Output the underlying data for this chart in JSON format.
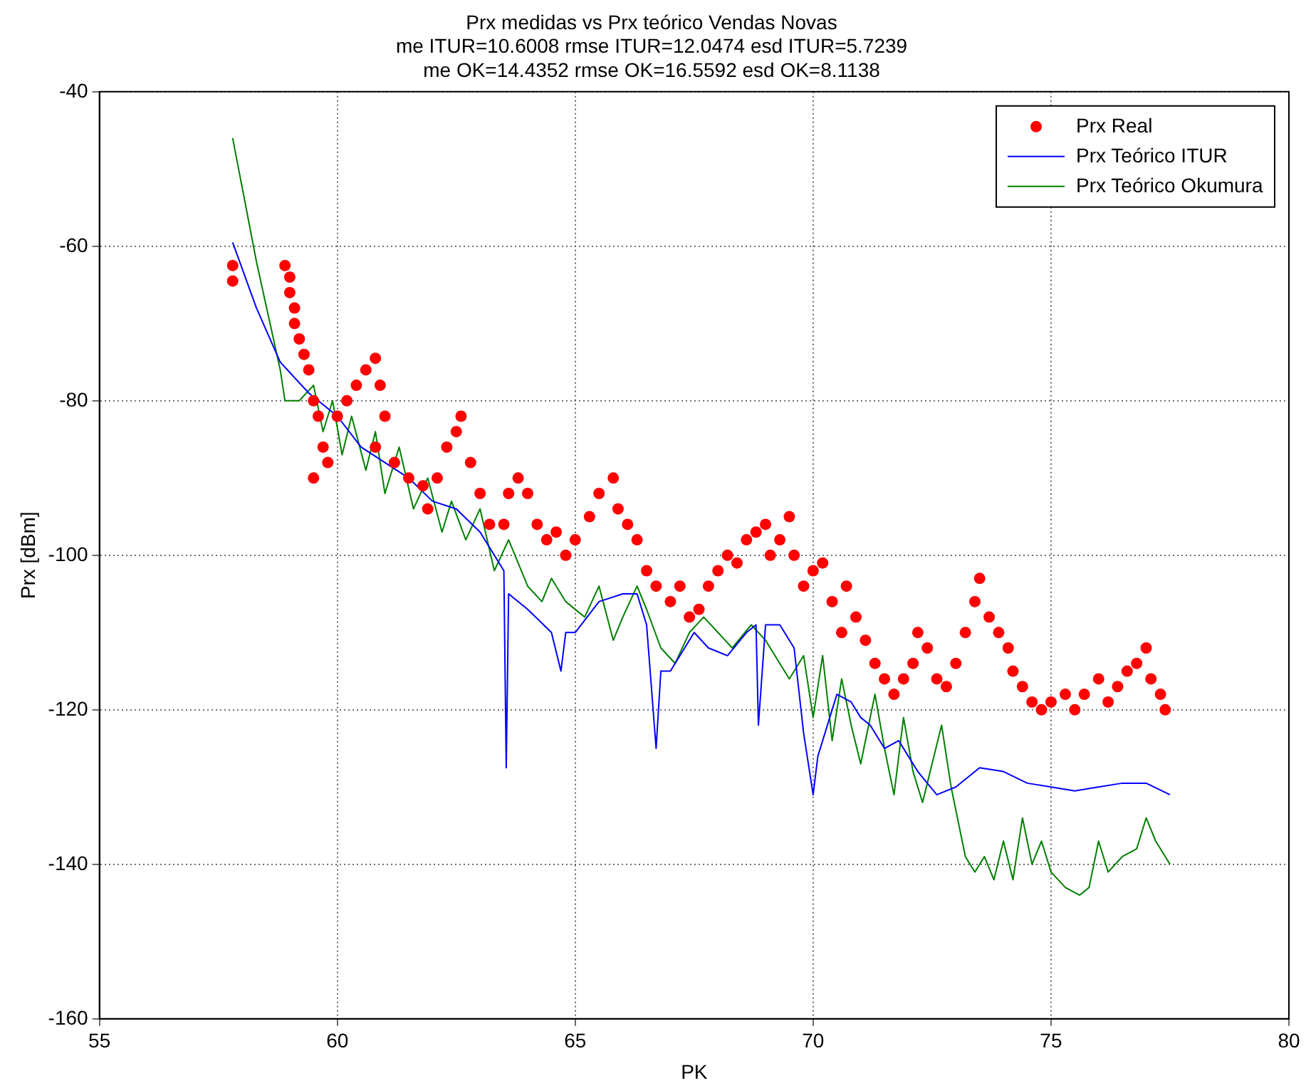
{
  "chart_data": {
    "type": "scatter",
    "title": "Prx medidas vs Prx teórico Vendas Novas",
    "subtitle": "me ITUR=10.6008 rmse ITUR=12.0474 esd ITUR=5.7239\nme OK=14.4352 rmse OK=16.5592 esd OK=8.1138",
    "xlabel": "PK",
    "ylabel": "Prx [dBm]",
    "xlim": [
      55,
      80
    ],
    "ylim": [
      -160,
      -40
    ],
    "xticks": [
      55,
      60,
      65,
      70,
      75,
      80
    ],
    "yticks": [
      -160,
      -140,
      -120,
      -100,
      -80,
      -60,
      -40
    ],
    "grid": true,
    "legend": "top right",
    "series": [
      {
        "name": "Prx Real",
        "marker": "circle",
        "color": "#ff0000",
        "x": [
          57.8,
          57.8,
          58.9,
          59.0,
          59.0,
          59.1,
          59.1,
          59.2,
          59.3,
          59.4,
          59.5,
          59.6,
          59.7,
          59.5,
          59.8,
          60.0,
          60.2,
          60.4,
          60.6,
          60.8,
          60.9,
          61.0,
          60.8,
          61.2,
          61.5,
          61.8,
          61.9,
          62.1,
          62.3,
          62.5,
          62.6,
          62.8,
          63.0,
          63.2,
          63.5,
          63.6,
          63.8,
          64.0,
          64.2,
          64.4,
          64.6,
          64.8,
          65.0,
          65.3,
          65.5,
          65.8,
          65.9,
          66.1,
          66.3,
          66.5,
          66.7,
          67.0,
          67.2,
          67.4,
          67.6,
          67.8,
          68.0,
          68.2,
          68.4,
          68.6,
          68.8,
          69.0,
          69.1,
          69.3,
          69.5,
          69.6,
          69.8,
          70.0,
          70.2,
          70.4,
          70.6,
          70.7,
          70.9,
          71.1,
          71.3,
          71.5,
          71.7,
          71.9,
          72.1,
          72.2,
          72.4,
          72.6,
          72.8,
          73.0,
          73.2,
          73.4,
          73.5,
          73.7,
          73.9,
          74.1,
          74.2,
          74.4,
          74.6,
          74.8,
          75.0,
          75.3,
          75.5,
          75.7,
          76.0,
          76.2,
          76.4,
          76.6,
          76.8,
          77.0,
          77.1,
          77.3,
          77.4
        ],
        "values": [
          -62.5,
          -64.5,
          -62.5,
          -64,
          -66,
          -68,
          -70,
          -72,
          -74,
          -76,
          -80,
          -82,
          -86,
          -90,
          -88,
          -82,
          -80,
          -78,
          -76,
          -74.5,
          -78,
          -82,
          -86,
          -88,
          -90,
          -91,
          -94,
          -90,
          -86,
          -84,
          -82,
          -88,
          -92,
          -96,
          -96,
          -92,
          -90,
          -92,
          -96,
          -98,
          -97,
          -100,
          -98,
          -95,
          -92,
          -90,
          -94,
          -96,
          -98,
          -102,
          -104,
          -106,
          -104,
          -108,
          -107,
          -104,
          -102,
          -100,
          -101,
          -98,
          -97,
          -96,
          -100,
          -98,
          -95,
          -100,
          -104,
          -102,
          -101,
          -106,
          -110,
          -104,
          -108,
          -111,
          -114,
          -116,
          -118,
          -116,
          -114,
          -110,
          -112,
          -116,
          -117,
          -114,
          -110,
          -106,
          -103,
          -108,
          -110,
          -112,
          -115,
          -117,
          -119,
          -120,
          -119,
          -118,
          -120,
          -118,
          -116,
          -119,
          -117,
          -115,
          -114,
          -112,
          -116,
          -118,
          -120
        ]
      },
      {
        "name": "Prx Teórico ITUR",
        "type": "line",
        "marker": "none",
        "line_style": "solid",
        "color": "#0000ff",
        "x": [
          57.8,
          58.3,
          58.8,
          59.4,
          60.0,
          60.5,
          61.0,
          61.5,
          62.0,
          62.5,
          63.0,
          63.3,
          63.5,
          63.55,
          63.6,
          64.0,
          64.5,
          64.7,
          64.8,
          65.0,
          65.5,
          66.0,
          66.3,
          66.5,
          66.7,
          66.8,
          67.0,
          67.3,
          67.5,
          67.8,
          68.2,
          68.6,
          68.8,
          68.85,
          69.0,
          69.3,
          69.6,
          69.8,
          70.0,
          70.1,
          70.3,
          70.5,
          70.8,
          71.0,
          71.2,
          71.5,
          71.8,
          72.2,
          72.6,
          73.0,
          73.5,
          74.0,
          74.5,
          75.0,
          75.5,
          76.0,
          76.5,
          77.0,
          77.5
        ],
        "values": [
          -59.5,
          -68,
          -75,
          -79,
          -82,
          -86,
          -88,
          -90,
          -93,
          -94,
          -97,
          -100,
          -102,
          -127.5,
          -105,
          -107,
          -110,
          -115,
          -110,
          -110,
          -106,
          -105,
          -105,
          -109,
          -125,
          -115,
          -115,
          -112,
          -110,
          -112,
          -113,
          -110,
          -109,
          -122,
          -109,
          -109,
          -112,
          -123,
          -131,
          -126,
          -122,
          -118,
          -119,
          -121,
          -122,
          -125,
          -124,
          -128,
          -131,
          -130,
          -127.5,
          -128,
          -129.5,
          -130,
          -130.5,
          -130,
          -129.5,
          -129.5,
          -131
        ]
      },
      {
        "name": "Prx Teórico Okumura",
        "type": "line",
        "marker": "none",
        "line_style": "solid",
        "color": "#008000",
        "x": [
          57.8,
          58.3,
          58.8,
          58.9,
          59.2,
          59.5,
          59.7,
          59.9,
          60.1,
          60.3,
          60.6,
          60.8,
          61.0,
          61.3,
          61.6,
          61.9,
          62.2,
          62.4,
          62.7,
          63.0,
          63.3,
          63.6,
          64.0,
          64.3,
          64.5,
          64.8,
          65.2,
          65.5,
          65.8,
          66.0,
          66.3,
          66.5,
          66.8,
          67.1,
          67.4,
          67.7,
          68.0,
          68.3,
          68.7,
          69.0,
          69.3,
          69.5,
          69.8,
          70.0,
          70.2,
          70.4,
          70.6,
          70.8,
          71.0,
          71.3,
          71.5,
          71.7,
          71.9,
          72.1,
          72.3,
          72.5,
          72.7,
          72.9,
          73.2,
          73.4,
          73.6,
          73.8,
          74.0,
          74.2,
          74.4,
          74.6,
          74.8,
          75.0,
          75.3,
          75.6,
          75.8,
          76.0,
          76.2,
          76.5,
          76.8,
          77.0,
          77.2,
          77.5
        ],
        "values": [
          -46,
          -62,
          -76,
          -80,
          -80,
          -78,
          -84,
          -80,
          -87,
          -82,
          -89,
          -84,
          -92,
          -86,
          -94,
          -90,
          -97,
          -93,
          -98,
          -94,
          -102,
          -98,
          -104,
          -106,
          -103,
          -106,
          -108,
          -104,
          -111,
          -108,
          -104,
          -107,
          -112,
          -114,
          -110,
          -108,
          -110,
          -112,
          -109,
          -111,
          -114,
          -116,
          -113,
          -121,
          -113,
          -124,
          -116,
          -122,
          -127,
          -118,
          -125,
          -131,
          -121,
          -128,
          -132,
          -127,
          -122,
          -130,
          -139,
          -141,
          -139,
          -142,
          -137,
          -142,
          -134,
          -140,
          -137,
          -141,
          -143,
          -144,
          -143,
          -137,
          -141,
          -139,
          -138,
          -134,
          -137,
          -140
        ]
      }
    ]
  }
}
